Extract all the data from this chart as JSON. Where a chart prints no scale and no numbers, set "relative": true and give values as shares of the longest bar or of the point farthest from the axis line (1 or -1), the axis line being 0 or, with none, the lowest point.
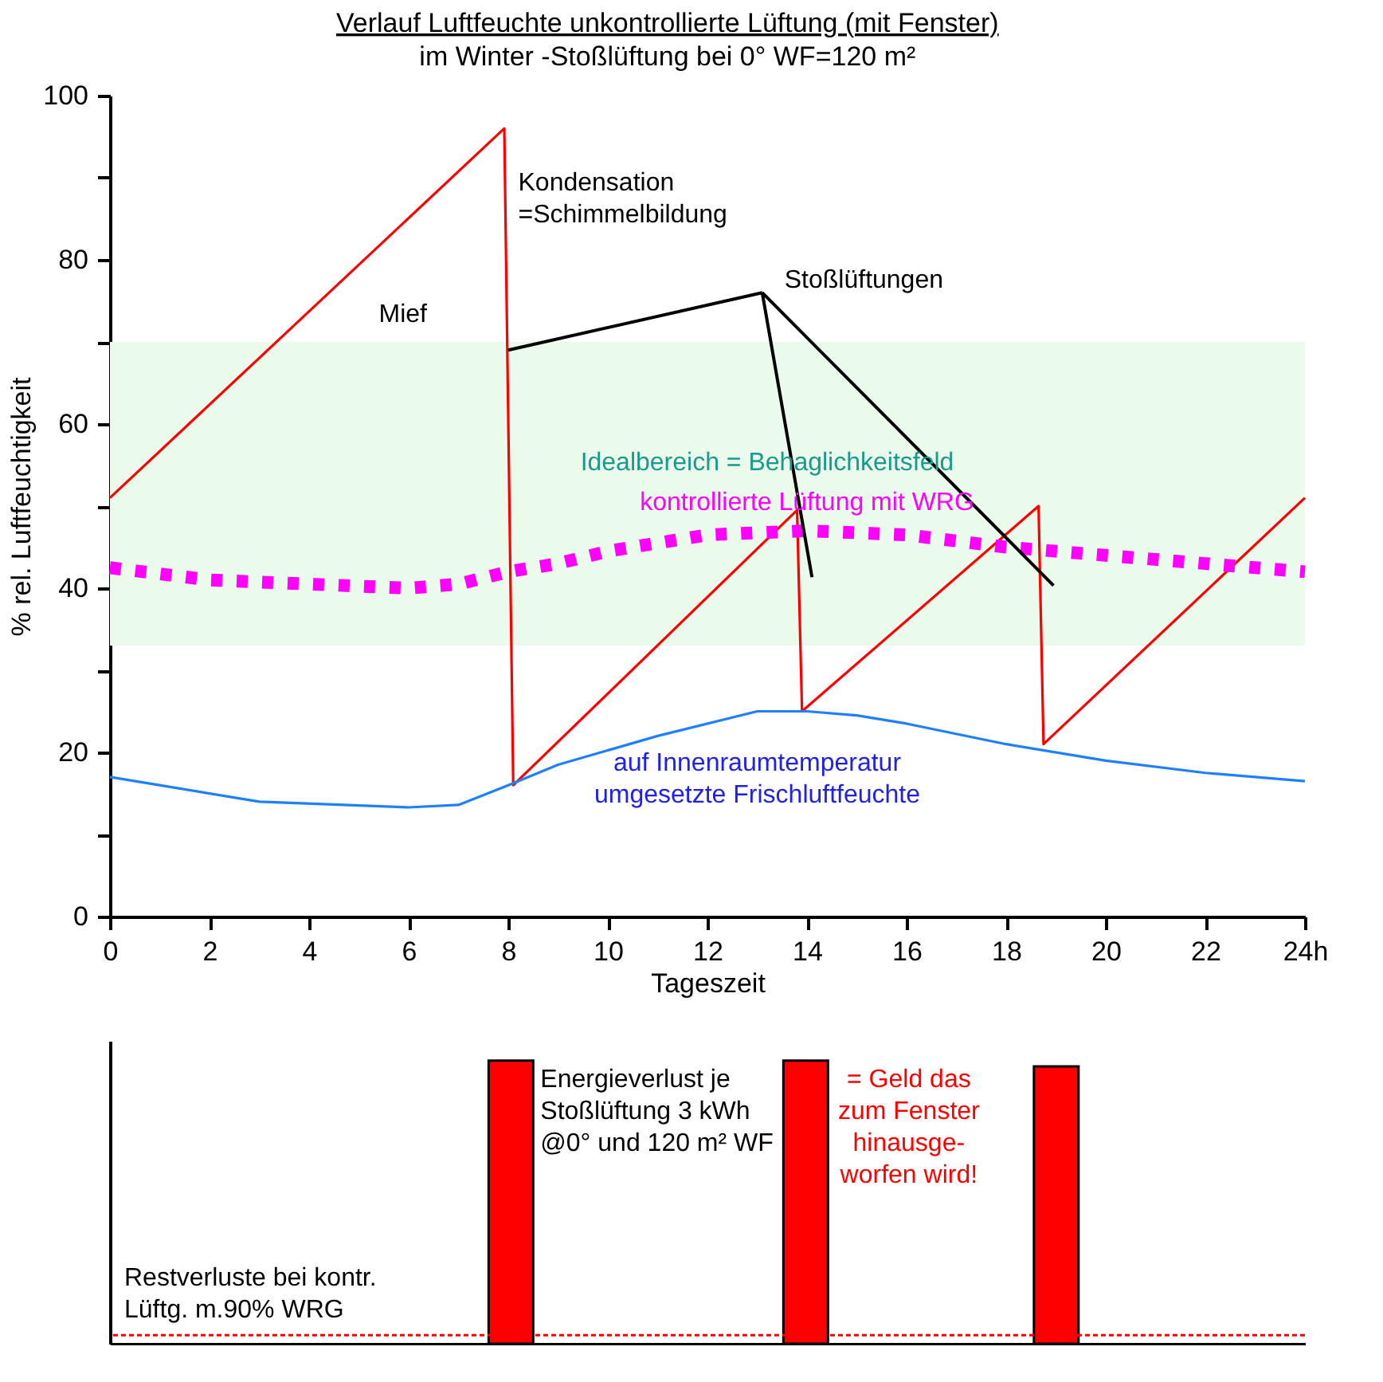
{
  "chart_data": [
    {
      "type": "line",
      "title": "Verlauf Luftfeuchte unkontrollierte Lüftung (mit Fenster)",
      "subtitle": "im Winter -Stoßlüftung bei 0° WF=120 m²",
      "xlabel": "Tageszeit",
      "ylabel": "% rel. Luftfeuchtigkeit",
      "xlim": [
        0,
        24
      ],
      "ylim": [
        0,
        100
      ],
      "xticks": [
        0,
        2,
        4,
        6,
        8,
        10,
        12,
        14,
        16,
        18,
        20,
        22,
        {
          "value": 24,
          "label": "24h"
        }
      ],
      "yticks": [
        0,
        {
          "value": 10,
          "label": null
        },
        20,
        {
          "value": 30,
          "label": null
        },
        40,
        {
          "value": 50,
          "label": null
        },
        60,
        {
          "value": 70,
          "label": null
        },
        80,
        {
          "value": 90,
          "label": null
        },
        100
      ],
      "bands": [
        {
          "axis": "y",
          "from": 33,
          "to": 70,
          "label": "Idealbereich = Behaglichkeitsfeld",
          "color": "#ebfbeb"
        }
      ],
      "series": [
        {
          "color": "#ff0000",
          "x": [
            0,
            7.92,
            8.1,
            13.8,
            13.9,
            18.65,
            18.75,
            24
          ],
          "values": [
            51,
            96,
            16,
            49.5,
            25,
            50,
            21,
            51
          ]
        },
        {
          "name": "kontrollierte Lüftung mit WRG",
          "color": "#ff00ff",
          "line_style": "dotted",
          "x": [
            0,
            2,
            4,
            6,
            7,
            8,
            9,
            10,
            12,
            14,
            16,
            18,
            20,
            22,
            24
          ],
          "values": [
            42.5,
            41,
            40.5,
            40,
            40.5,
            42,
            43,
            44.5,
            46.5,
            47,
            46.5,
            45,
            44,
            43,
            42
          ]
        },
        {
          "name": "auf Innenraumtemperatur umgesetzte Frischluftfeuchte",
          "color": "#1e80ff",
          "x": [
            0,
            3,
            6,
            7,
            8,
            9,
            11,
            13,
            14,
            15,
            16,
            18,
            20,
            22,
            24
          ],
          "values": [
            17,
            14,
            13.3,
            13.6,
            16,
            18.5,
            22,
            25,
            25,
            24.5,
            23.5,
            21,
            19,
            17.5,
            16.5
          ]
        }
      ],
      "annotations": [
        "Kondensation =Schimmelbildung",
        "Mief",
        {
          "text": "Stoßlüftungen",
          "x": 8,
          "y": 69
        }
      ]
    },
    {
      "type": "bar",
      "relative": true,
      "x": [
        8,
        14,
        19.1
      ],
      "values": [
        1,
        1,
        0.98
      ],
      "color": "#ff0000",
      "xlim": [
        0,
        24
      ],
      "tick_labels": false,
      "ref_lines": [
        {
          "axis": "y",
          "value": 0.03,
          "label": "Restverluste bei kontr. Lüftg. m.90% WRG",
          "color": "#ff0000",
          "line_style": "dotted"
        }
      ],
      "annotations": [
        "Energieverlust je Stoßlüftung 3 kWh @0° und 120 m² WF",
        "= Geld das zum Fenster hinausge- worfen wird!"
      ]
    }
  ]
}
